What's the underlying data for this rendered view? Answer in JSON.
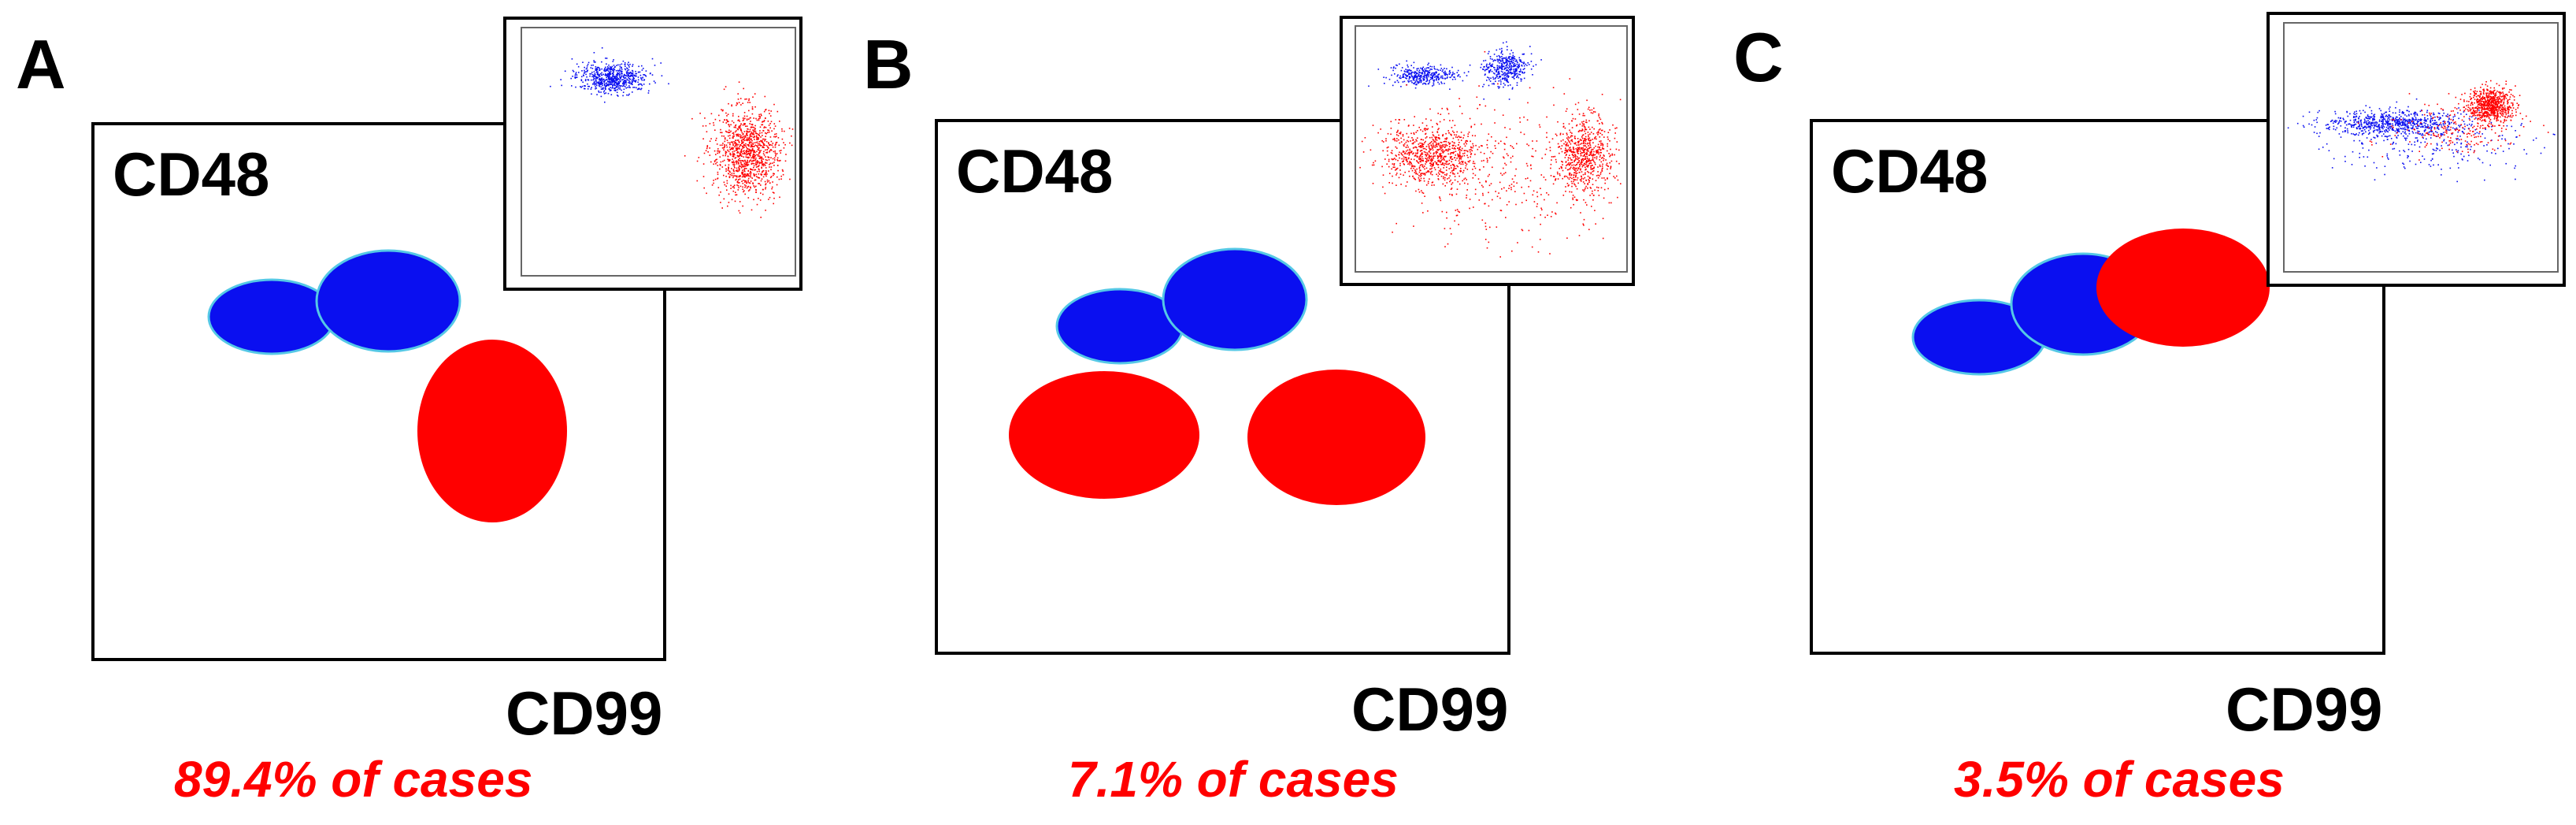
{
  "colors": {
    "blue_population": "#0a0ff0",
    "red_population": "#ff0000",
    "frame": "#000000",
    "percent_text": "#ff0000"
  },
  "panels": [
    {
      "letter": "A",
      "y_axis": "CD48",
      "x_axis": "CD99",
      "percent_label": "89.4% of cases",
      "inset": "flow-cytometry-dotplot"
    },
    {
      "letter": "B",
      "y_axis": "CD48",
      "x_axis": "CD99",
      "percent_label": "7.1% of cases",
      "inset": "flow-cytometry-dotplot"
    },
    {
      "letter": "C",
      "y_axis": "CD48",
      "x_axis": "CD99",
      "percent_label": "3.5% of cases",
      "inset": "flow-cytometry-dotplot"
    }
  ]
}
